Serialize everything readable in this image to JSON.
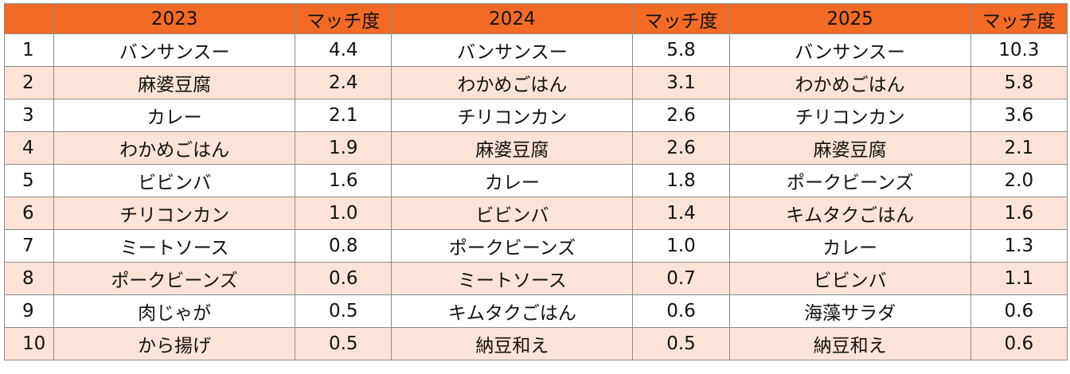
{
  "colors": {
    "header_bg": "#f26a26",
    "row_even_bg": "#fde3d7",
    "row_odd_bg": "#ffffff"
  },
  "table": {
    "header": [
      "",
      "2023",
      "マッチ度",
      "2024",
      "マッチ度",
      "2025",
      "マッチ度"
    ],
    "rows": [
      [
        "1",
        "バンサンスー",
        "4.4",
        "バンサンスー",
        "5.8",
        "バンサンスー",
        "10.3"
      ],
      [
        "2",
        "麻婆豆腐",
        "2.4",
        "わかめごはん",
        "3.1",
        "わかめごはん",
        "5.8"
      ],
      [
        "3",
        "カレー",
        "2.1",
        "チリコンカン",
        "2.6",
        "チリコンカン",
        "3.6"
      ],
      [
        "4",
        "わかめごはん",
        "1.9",
        "麻婆豆腐",
        "2.6",
        "麻婆豆腐",
        "2.1"
      ],
      [
        "5",
        "ビビンバ",
        "1.6",
        "カレー",
        "1.8",
        "ポークビーンズ",
        "2.0"
      ],
      [
        "6",
        "チリコンカン",
        "1.0",
        "ビビンバ",
        "1.4",
        "キムタクごはん",
        "1.6"
      ],
      [
        "7",
        "ミートソース",
        "0.8",
        "ポークビーンズ",
        "1.0",
        "カレー",
        "1.3"
      ],
      [
        "8",
        "ポークビーンズ",
        "0.6",
        "ミートソース",
        "0.7",
        "ビビンバ",
        "1.1"
      ],
      [
        "9",
        "肉じゃが",
        "0.5",
        "キムタクごはん",
        "0.6",
        "海藻サラダ",
        "0.6"
      ],
      [
        "10",
        "から揚げ",
        "0.5",
        "納豆和え",
        "0.5",
        "納豆和え",
        "0.6"
      ]
    ]
  }
}
